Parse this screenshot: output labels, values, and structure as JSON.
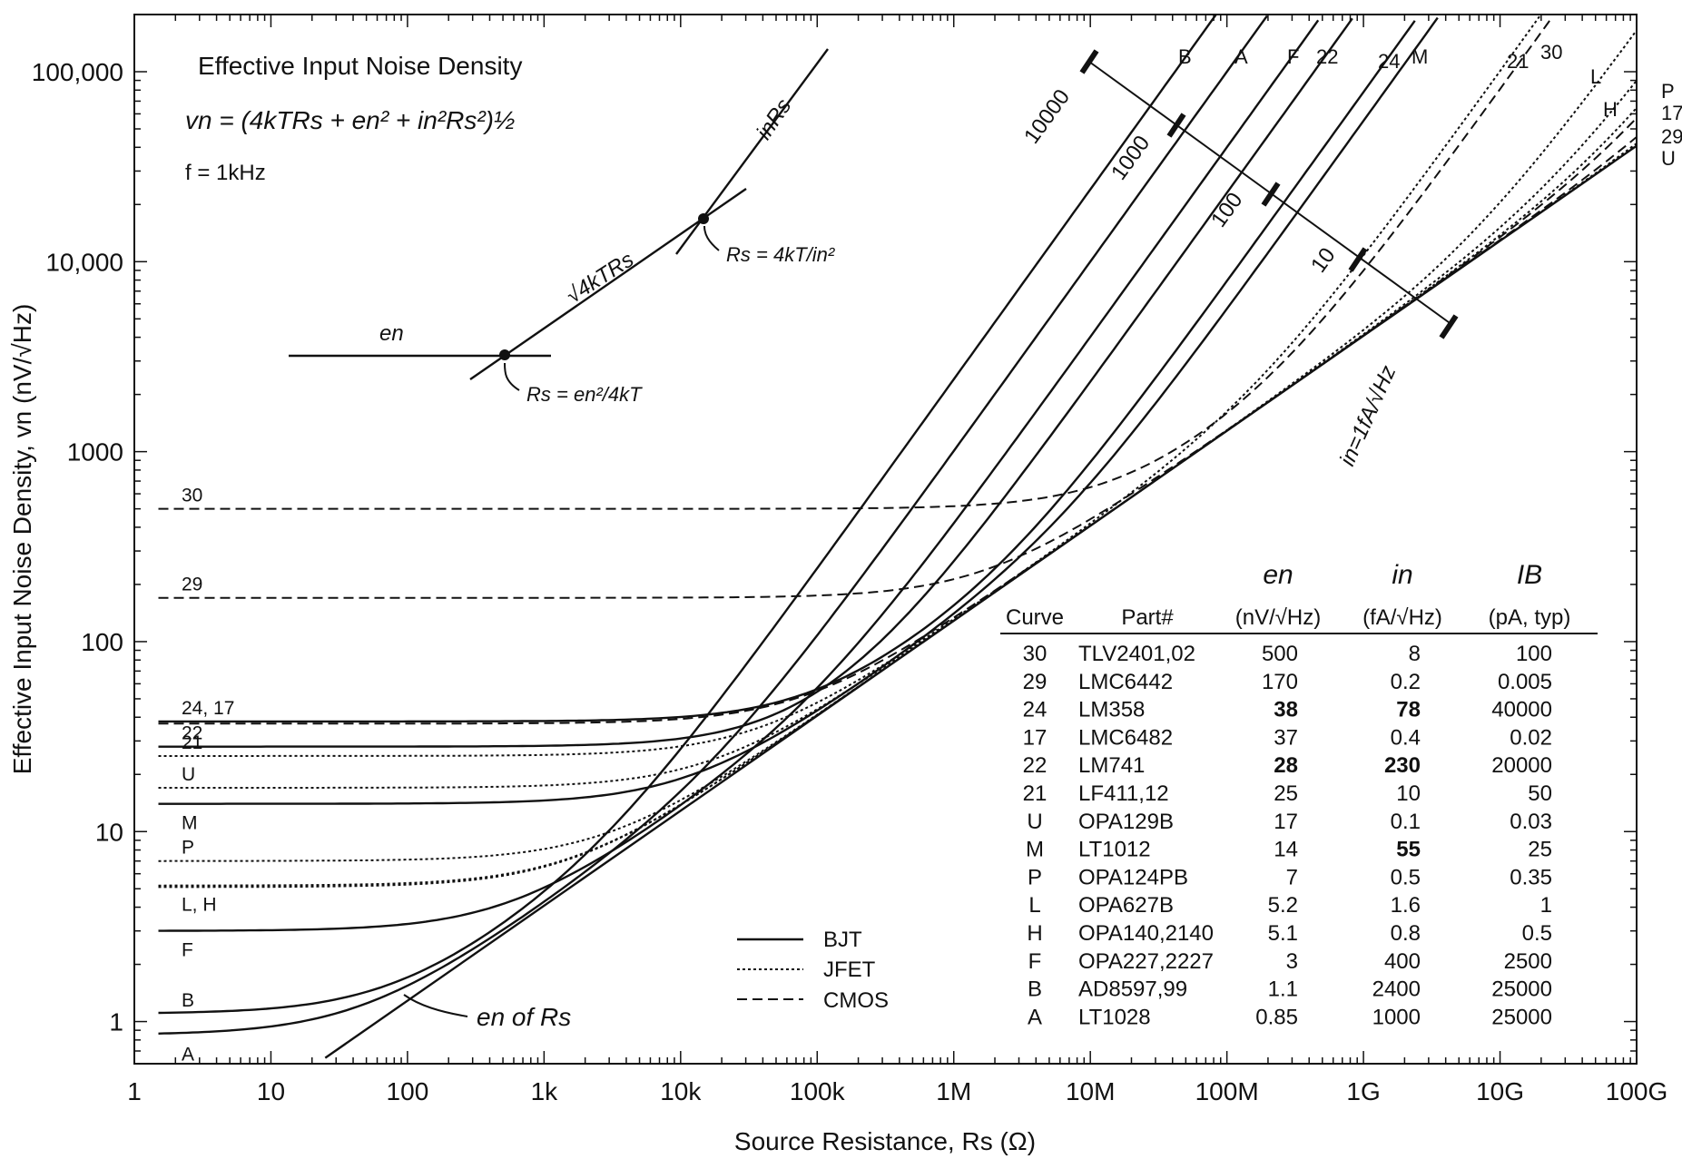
{
  "chart_data": {
    "type": "line",
    "title": "Effective Input Noise Density",
    "formula": "vn = (4kTRs + en² + in²Rs²)½",
    "frequency": "f = 1kHz",
    "xlabel": "Source Resistance, Rs (Ω)",
    "ylabel": "Effective Input Noise Density, vn (nV/√Hz)",
    "x_scale": "log",
    "y_scale": "log",
    "xlim": [
      1,
      100000000000
    ],
    "ylim": [
      0.6,
      200000
    ],
    "x_ticks": [
      {
        "value": 1,
        "label": "1"
      },
      {
        "value": 10,
        "label": "10"
      },
      {
        "value": 100,
        "label": "100"
      },
      {
        "value": 1000,
        "label": "1k"
      },
      {
        "value": 10000,
        "label": "10k"
      },
      {
        "value": 100000,
        "label": "100k"
      },
      {
        "value": 1000000,
        "label": "1M"
      },
      {
        "value": 10000000,
        "label": "10M"
      },
      {
        "value": 100000000,
        "label": "100M"
      },
      {
        "value": 1000000000,
        "label": "1G"
      },
      {
        "value": 10000000000,
        "label": "10G"
      },
      {
        "value": 100000000000,
        "label": "100G"
      }
    ],
    "y_ticks": [
      {
        "value": 1,
        "label": "1"
      },
      {
        "value": 10,
        "label": "10"
      },
      {
        "value": 100,
        "label": "100"
      },
      {
        "value": 1000,
        "label": "1000"
      },
      {
        "value": 10000,
        "label": "10,000"
      },
      {
        "value": 100000,
        "label": "100,000"
      }
    ],
    "legend": [
      {
        "style": "solid",
        "label": "BJT"
      },
      {
        "style": "dotted",
        "label": "JFET"
      },
      {
        "style": "dashed",
        "label": "CMOS"
      }
    ],
    "series": [
      {
        "curve": "30",
        "part": "TLV2401,02",
        "en": 500,
        "in": 8,
        "ib": "100",
        "type": "CMOS",
        "label": "30"
      },
      {
        "curve": "29",
        "part": "LMC6442",
        "en": 170,
        "in": 0.2,
        "ib": "0.005",
        "type": "CMOS",
        "label": "29"
      },
      {
        "curve": "24",
        "part": "LM358",
        "en": 38,
        "in": 78,
        "ib": "40000",
        "type": "BJT",
        "label": "24, 17"
      },
      {
        "curve": "17",
        "part": "LMC6482",
        "en": 37,
        "in": 0.4,
        "ib": "0.02",
        "type": "CMOS",
        "label": ""
      },
      {
        "curve": "22",
        "part": "LM741",
        "en": 28,
        "in": 230,
        "ib": "20000",
        "type": "BJT",
        "label": "22"
      },
      {
        "curve": "21",
        "part": "LF411,12",
        "en": 25,
        "in": 10,
        "ib": "50",
        "type": "JFET",
        "label": "21"
      },
      {
        "curve": "U",
        "part": "OPA129B",
        "en": 17,
        "in": 0.1,
        "ib": "0.03",
        "type": "JFET",
        "label": "U"
      },
      {
        "curve": "M",
        "part": "LT1012",
        "en": 14,
        "in": 55,
        "ib": "25",
        "type": "BJT",
        "label": "M"
      },
      {
        "curve": "P",
        "part": "OPA124PB",
        "en": 7,
        "in": 0.5,
        "ib": "0.35",
        "type": "JFET",
        "label": "P"
      },
      {
        "curve": "L",
        "part": "OPA627B",
        "en": 5.2,
        "in": 1.6,
        "ib": "1",
        "type": "JFET",
        "label": "L, H"
      },
      {
        "curve": "H",
        "part": "OPA140,2140",
        "en": 5.1,
        "in": 0.8,
        "ib": "0.5",
        "type": "JFET",
        "label": ""
      },
      {
        "curve": "F",
        "part": "OPA227,2227",
        "en": 3,
        "in": 400,
        "ib": "2500",
        "type": "BJT",
        "label": "F"
      },
      {
        "curve": "B",
        "part": "AD8597,99",
        "en": 1.1,
        "in": 2400,
        "ib": "25000",
        "type": "BJT",
        "label": "B"
      },
      {
        "curve": "A",
        "part": "LT1028",
        "en": 0.85,
        "in": 1000,
        "ib": "25000",
        "type": "BJT",
        "label": "A"
      }
    ],
    "table": {
      "headers": {
        "curve": "Curve",
        "part": "Part#",
        "en_symbol": "en",
        "en_unit": "(nV/√Hz)",
        "in_symbol": "in",
        "in_unit": "(fA/√Hz)",
        "ib_symbol": "IB",
        "ib_unit": "(pA, typ)"
      },
      "bold_values": [
        "24:en",
        "24:in",
        "22:en",
        "22:in",
        "M:in"
      ]
    },
    "annotations": {
      "en_of_rs": "en of Rs",
      "rs_en_label": "en",
      "thermal_label": "√4kTRs",
      "inrs_label": "inRs",
      "rs_eq1": "Rs = en²/4kT",
      "rs_eq2": "Rs = 4kT/in²",
      "in_scale_label": "in=1fA/√Hz",
      "in_scale_values": [
        "10000",
        "1000",
        "100",
        "10"
      ]
    },
    "top_labels": [
      "B",
      "A",
      "F",
      "22",
      "24",
      "M",
      "21",
      "30",
      "L",
      "H",
      "P",
      "17",
      "29",
      "U"
    ]
  }
}
